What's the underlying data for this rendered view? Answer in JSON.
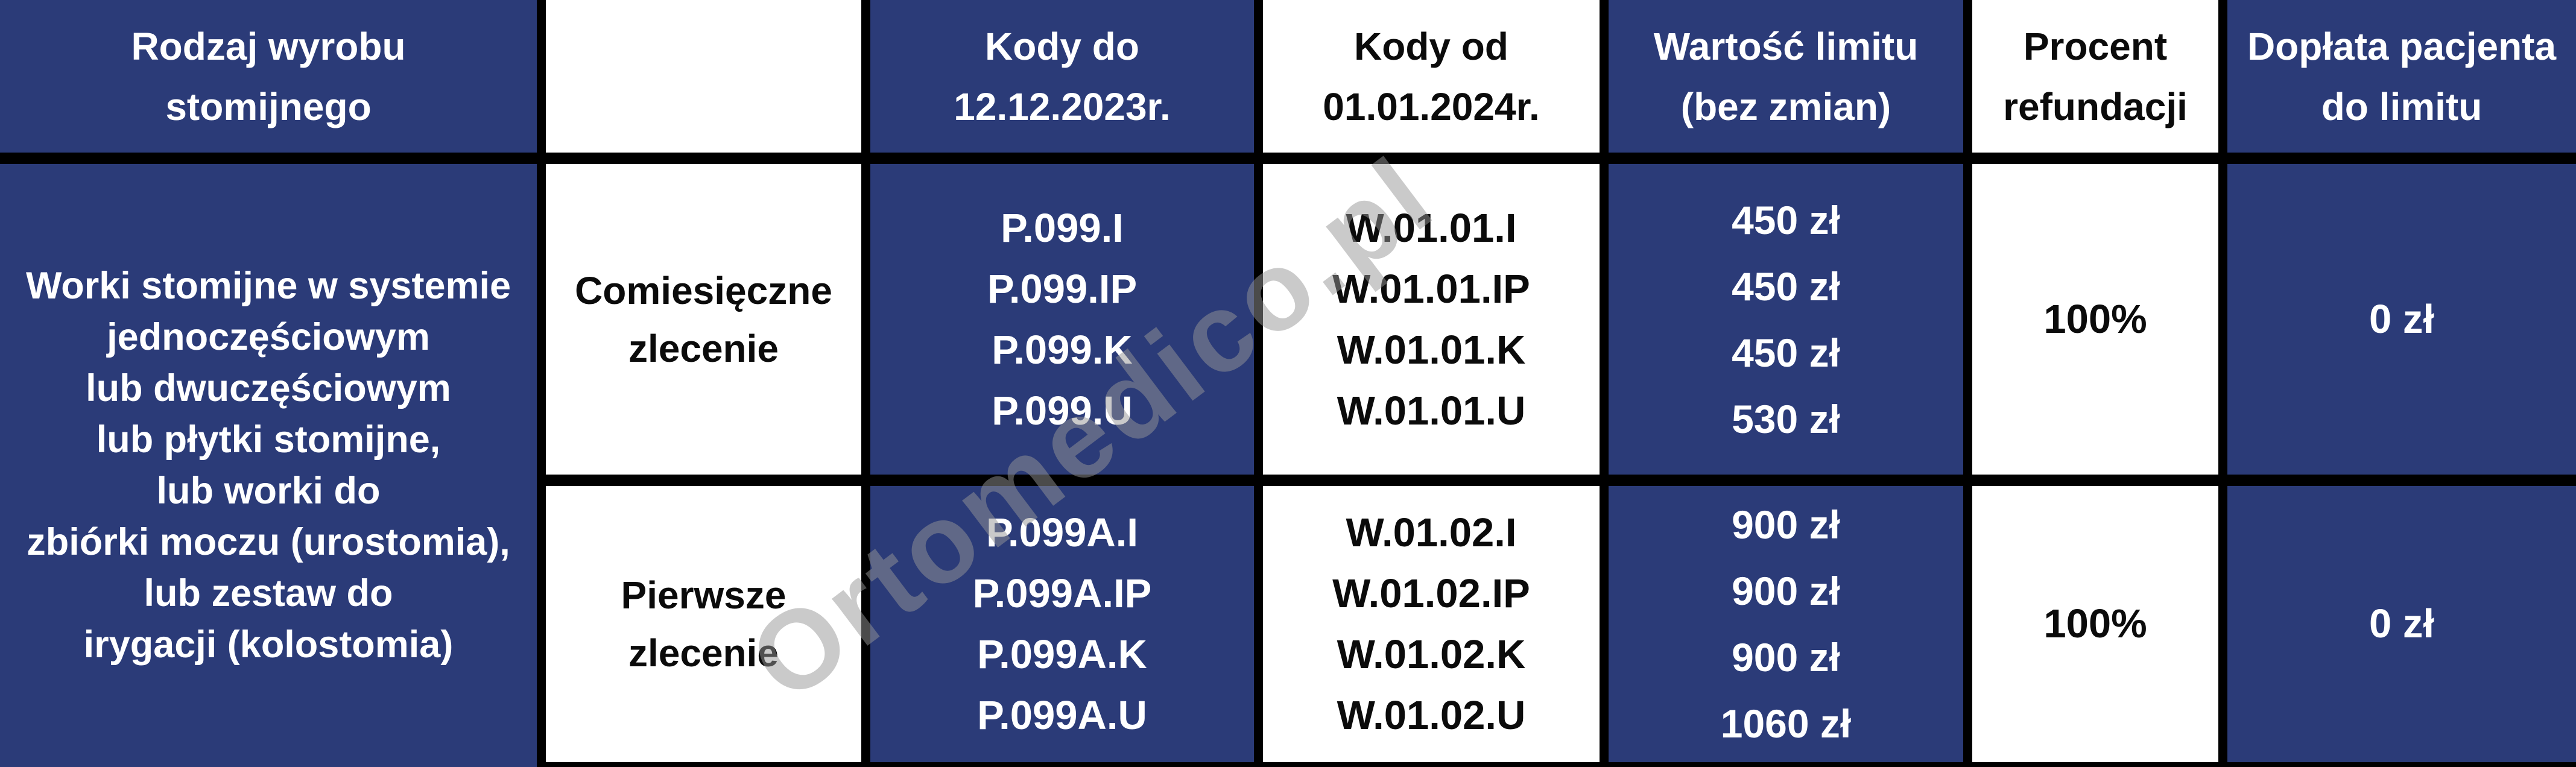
{
  "watermark": "Ortomedico.pl",
  "colors": {
    "cell_blue": "#2b3b78",
    "border_black": "#000000",
    "cell_white": "#ffffff"
  },
  "header": {
    "product_type": [
      "Rodzaj wyrobu",
      "stomijnego"
    ],
    "blank": "",
    "codes_until": [
      "Kody do",
      "12.12.2023r."
    ],
    "codes_from": [
      "Kody od",
      "01.01.2024r."
    ],
    "limit_value": [
      "Wartość limitu",
      "(bez zmian)"
    ],
    "refund_percent": [
      "Procent",
      "refundacji"
    ],
    "patient_copay": [
      "Dopłata pacjenta",
      "do limitu"
    ]
  },
  "product": {
    "lines": [
      "Worki stomijne w systemie",
      "jednoczęściowym",
      "lub dwuczęściowym",
      "lub płytki stomijne,",
      "lub worki do",
      "zbiórki moczu (urostomia),",
      "lub zestaw do",
      "irygacji (kolostomia)"
    ]
  },
  "rows": [
    {
      "order_type": [
        "Comiesięczne",
        "zlecenie"
      ],
      "codes_old": [
        "P.099.I",
        "P.099.IP",
        "P.099.K",
        "P.099.U"
      ],
      "codes_new": [
        "W.01.01.I",
        "W.01.01.IP",
        "W.01.01.K",
        "W.01.01.U"
      ],
      "limits": [
        "450 zł",
        "450 zł",
        "450 zł",
        "530 zł"
      ],
      "refund": "100%",
      "copay": "0 zł"
    },
    {
      "order_type": [
        "Pierwsze",
        "zlecenie"
      ],
      "codes_old": [
        "P.099A.I",
        "P.099A.IP",
        "P.099A.K",
        "P.099A.U"
      ],
      "codes_new": [
        "W.01.02.I",
        "W.01.02.IP",
        "W.01.02.K",
        "W.01.02.U"
      ],
      "limits": [
        "900 zł",
        "900 zł",
        "900 zł",
        "1060 zł"
      ],
      "refund": "100%",
      "copay": "0 zł"
    }
  ],
  "chart_data": {
    "type": "table",
    "columns": [
      "Rodzaj wyrobu stomijnego",
      "",
      "Kody do 12.12.2023r.",
      "Kody od 01.01.2024r.",
      "Wartość limitu (bez zmian)",
      "Procent refundacji",
      "Dopłata pacjenta do limitu"
    ],
    "rows": [
      [
        "Worki stomijne w systemie jednoczęściowym lub dwuczęściowym lub płytki stomijne, lub worki do zbiórki moczu (urostomia), lub zestaw do irygacji (kolostomia)",
        "Comiesięczne zlecenie",
        "P.099.I; P.099.IP; P.099.K; P.099.U",
        "W.01.01.I; W.01.01.IP; W.01.01.K; W.01.01.U",
        "450 zł; 450 zł; 450 zł; 530 zł",
        "100%",
        "0 zł"
      ],
      [
        "",
        "Pierwsze zlecenie",
        "P.099A.I; P.099A.IP; P.099A.K; P.099A.U",
        "W.01.02.I; W.01.02.IP; W.01.02.K; W.01.02.U",
        "900 zł; 900 zł; 900 zł; 1060 zł",
        "100%",
        "0 zł"
      ]
    ]
  }
}
